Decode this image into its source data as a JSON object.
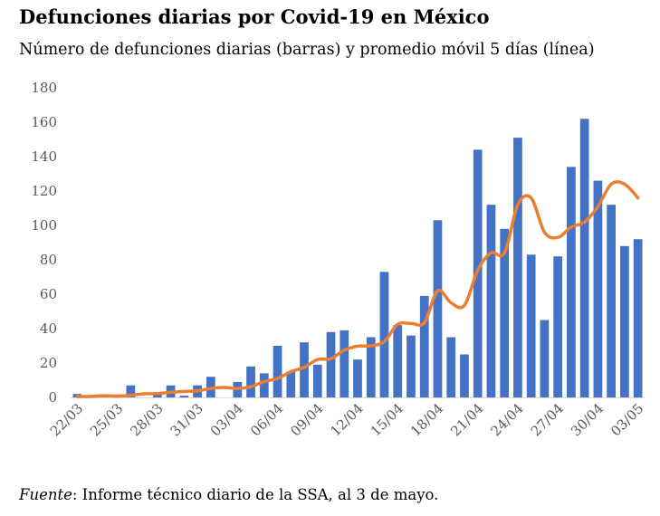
{
  "chart_data": {
    "type": "bar",
    "title": "Defunciones diarias por Covid-19 en México",
    "subtitle": "Número de defunciones diarias (barras) y promedio móvil 5 días (línea)",
    "ylim": [
      0,
      180
    ],
    "yticks": [
      "0",
      "20",
      "40",
      "60",
      "80",
      "100",
      "120",
      "140",
      "160",
      "180"
    ],
    "xtick_labels": [
      "22/03",
      "25/03",
      "28/03",
      "31/03",
      "03/04",
      "06/04",
      "09/04",
      "12/04",
      "15/04",
      "18/04",
      "21/04",
      "24/04",
      "27/04",
      "30/04",
      "03/05"
    ],
    "xtick_every": 3,
    "grid": false,
    "colors": {
      "bars": "#4472C4",
      "line": "#ED7D31",
      "axis": "#D9D9D9",
      "ticks": "#595959"
    },
    "series": [
      {
        "name": "Defunciones diarias",
        "kind": "bar",
        "values": [
          2,
          0,
          1,
          0,
          7,
          0,
          2,
          7,
          1,
          7,
          12,
          0,
          9,
          18,
          14,
          30,
          15,
          32,
          19,
          38,
          39,
          22,
          35,
          73,
          42,
          36,
          59,
          103,
          35,
          25,
          144,
          112,
          98,
          151,
          83,
          45,
          82,
          134,
          162,
          126,
          112,
          88,
          92
        ]
      },
      {
        "name": "Promedio móvil 5 días",
        "kind": "line",
        "values": [
          0.5,
          0.6,
          1.0,
          0.8,
          1.2,
          2.1,
          2.2,
          3.0,
          3.5,
          3.8,
          5.2,
          5.8,
          5.2,
          6.2,
          9.2,
          11.0,
          15.0,
          17.5,
          22.0,
          22.5,
          27.5,
          29.8,
          30.0,
          32.5,
          42.5,
          43.0,
          43.5,
          62.0,
          55.0,
          53.5,
          74.0,
          84.0,
          84.0,
          112.0,
          116.0,
          96.0,
          93.0,
          99.0,
          102.0,
          111.0,
          124.0,
          124.0,
          116.0
        ]
      }
    ]
  },
  "footer": {
    "source_label": "Fuente",
    "source_text": ": Informe técnico diario de la SSA, al 3 de mayo."
  }
}
